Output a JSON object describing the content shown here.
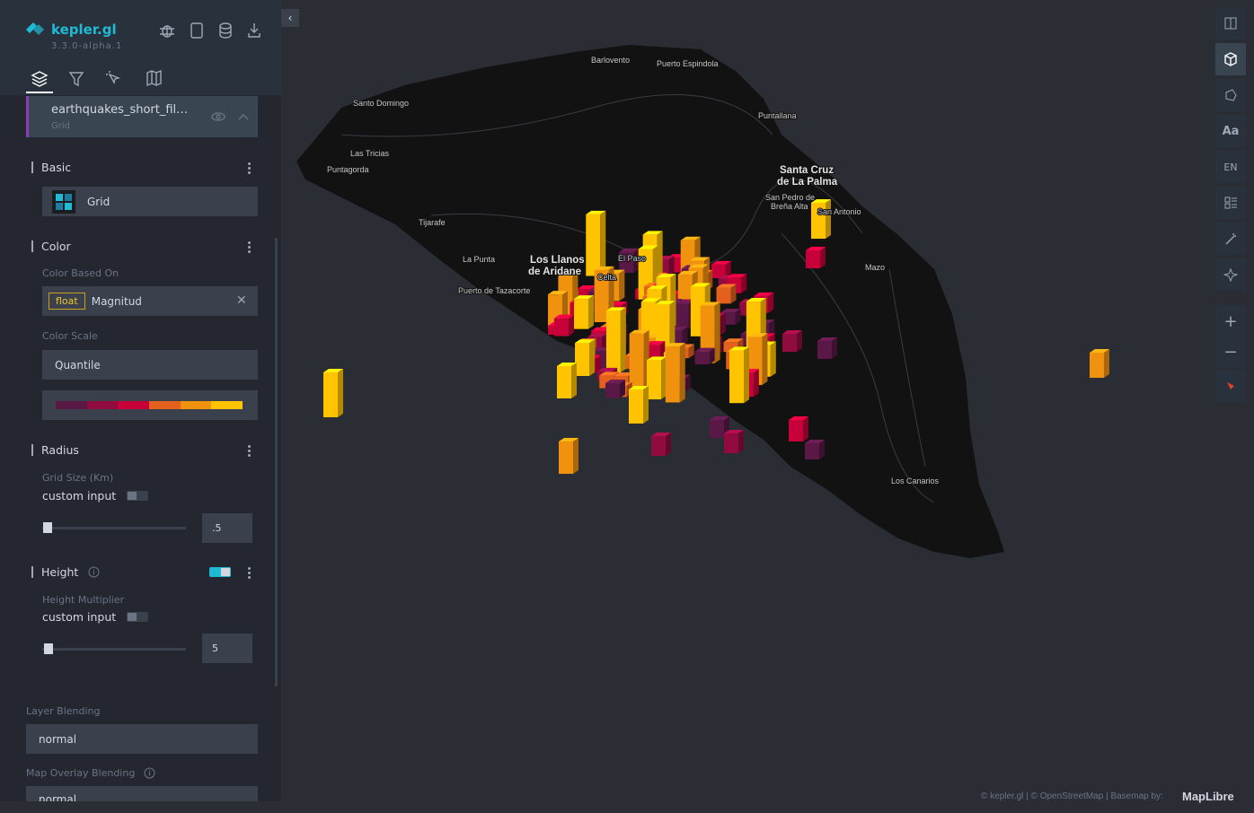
{
  "sidebar": {
    "app_name": "kepler.gl",
    "version": "3.3.0-alpha.1",
    "layer": {
      "name": "earthquakes_short_fil…",
      "type": "Grid"
    },
    "basic": {
      "title": "Basic",
      "layer_type": "Grid"
    },
    "color": {
      "title": "Color",
      "based_on_label": "Color Based On",
      "field_type": "float",
      "field": "Magnitud",
      "scale_label": "Color Scale",
      "scale": "Quantile",
      "palette": [
        "#5a1846",
        "#900c3f",
        "#c70039",
        "#e3611c",
        "#f1920e",
        "#ffc300"
      ]
    },
    "radius": {
      "title": "Radius",
      "grid_size_label": "Grid Size (Km)",
      "custom_input": "custom input",
      "value": ".5"
    },
    "height": {
      "title": "Height",
      "multiplier_label": "Height Multiplier",
      "custom_input": "custom input",
      "value": "5"
    },
    "layer_blending": {
      "label": "Layer Blending",
      "value": "normal"
    },
    "overlay_blending": {
      "label": "Map Overlay Blending",
      "value": "normal"
    }
  },
  "map": {
    "labels": [
      "Barlovento",
      "Puerto Espindola",
      "Santo Domingo",
      "Puntallana",
      "Las Tricias",
      "Puntagorda",
      "Santa Cruz",
      "de La Palma",
      "San Pedro de",
      "Breña Alta",
      "San Antonio",
      "Tijarafe",
      "La Punta",
      "Los Llanos",
      "de Aridane",
      "El Paso",
      "Celta",
      "Puerto de Tazacorte",
      "Mazo",
      "Los Canarios"
    ],
    "toolbar": {
      "font": "Aa",
      "language": "EN"
    },
    "attribution": "© kepler.gl | © OpenStreetMap | Basemap by:",
    "maplibre": "MapLibre"
  }
}
